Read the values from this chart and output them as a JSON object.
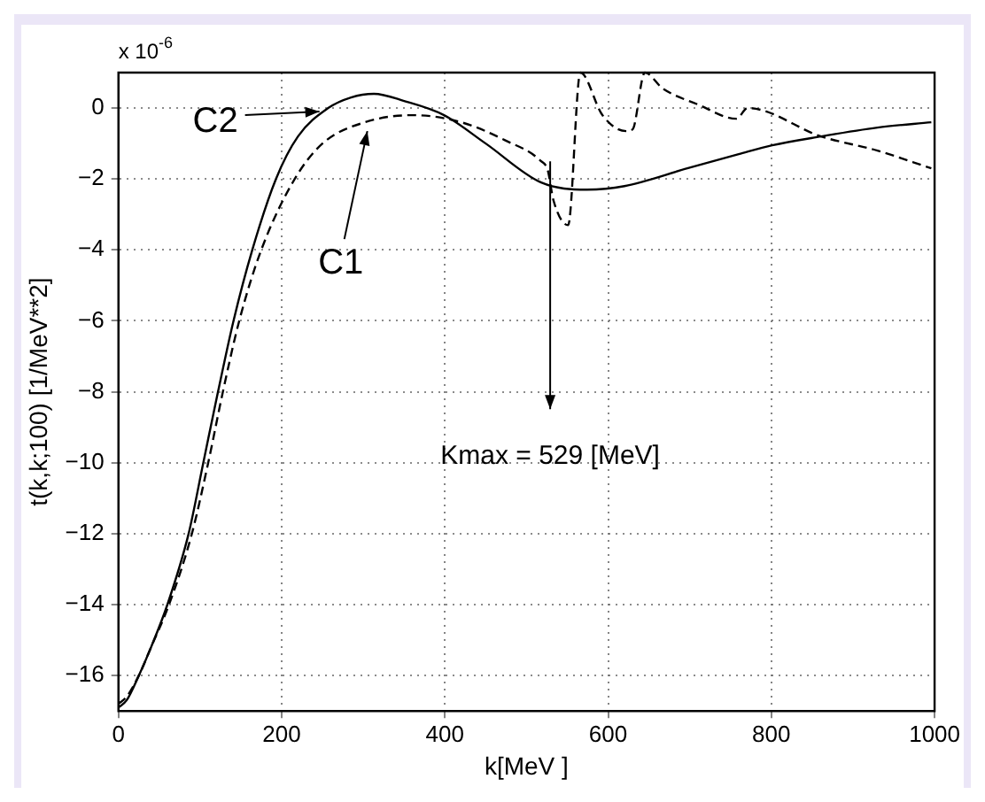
{
  "chart_data": {
    "type": "line",
    "xlabel": "k[MeV ]",
    "ylabel": "t(k,k;100) [1/MeV**2]",
    "xlim": [
      0,
      1000
    ],
    "xticks": [
      0,
      200,
      400,
      600,
      800,
      1000
    ],
    "ylim": [
      -17,
      1
    ],
    "yticks": [
      -16,
      -14,
      -12,
      -10,
      -8,
      -6,
      -4,
      -2,
      0
    ],
    "grid": true,
    "marker": "none",
    "series": [
      {
        "color": "#000000",
        "line_style": "solid",
        "x": [
          0,
          10,
          25,
          40,
          60,
          86,
          104,
          122,
          141,
          164,
          193,
          220,
          257,
          285,
          313,
          350,
          399,
          450,
          518,
          574,
          620,
          697,
          760,
          801,
          861,
          930,
          996
        ],
        "values": [
          -16.9,
          -16.7,
          -16,
          -15.2,
          -14,
          -12,
          -10,
          -8,
          -6,
          -4,
          -2,
          -0.8,
          0,
          0.3,
          0.4,
          0.2,
          -0.2,
          -1.0,
          -2.1,
          -2.3,
          -2.2,
          -1.7,
          -1.3,
          -1.05,
          -0.8,
          -0.55,
          -0.4
        ]
      },
      {
        "color": "#000000",
        "line_style": "dashed",
        "x": [
          0,
          10,
          25,
          40,
          62,
          90,
          110,
          128,
          148,
          175,
          216,
          250,
          302,
          361,
          420,
          473,
          518,
          526,
          533,
          551,
          566,
          593,
          622,
          630,
          645,
          667,
          710,
          757,
          771,
          861,
          930,
          996
        ],
        "values": [
          -16.8,
          -16.6,
          -16,
          -15.2,
          -14,
          -12,
          -10,
          -8,
          -6,
          -4,
          -2,
          -1,
          -0.4,
          -0.2,
          -0.4,
          -0.9,
          -1.5,
          -1.75,
          -2.6,
          -3.3,
          1.0,
          -0.2,
          -0.65,
          -0.6,
          1.0,
          0.55,
          0.1,
          -0.3,
          0,
          -0.8,
          -1.2,
          -1.7
        ]
      }
    ],
    "annotations": [
      "x 10$^{-6}$",
      {
        "text": "C2",
        "x": 255,
        "y": 0
      },
      {
        "text": "C1",
        "x": 305,
        "y": -0.4
      },
      {
        "text": "Kmax = 529 [MeV]",
        "x": 529,
        "y": -1.5
      }
    ]
  }
}
